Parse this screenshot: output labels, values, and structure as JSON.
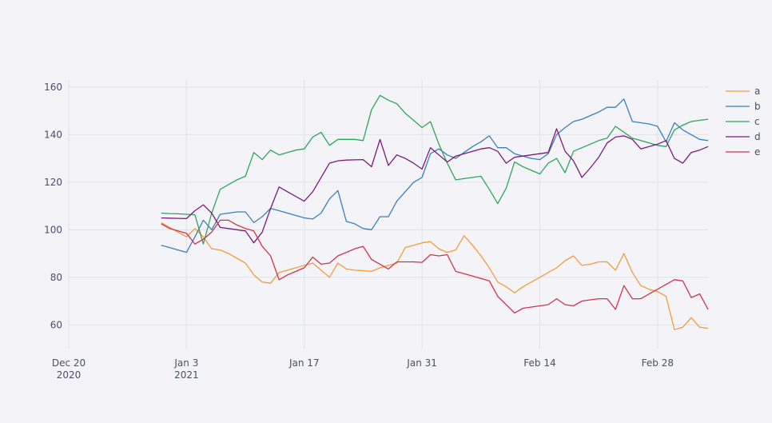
{
  "chart_data": {
    "type": "line",
    "title": "",
    "xlabel": "",
    "ylabel": "",
    "x_ticks": [
      {
        "date": "2020-12-20",
        "label": "Dec 20",
        "sublabel": "2020"
      },
      {
        "date": "2021-01-03",
        "label": "Jan 3",
        "sublabel": "2021"
      },
      {
        "date": "2021-01-17",
        "label": "Jan 17",
        "sublabel": ""
      },
      {
        "date": "2021-01-31",
        "label": "Jan 31",
        "sublabel": ""
      },
      {
        "date": "2021-02-14",
        "label": "Feb 14",
        "sublabel": ""
      },
      {
        "date": "2021-02-28",
        "label": "Feb 28",
        "sublabel": ""
      }
    ],
    "y_ticks": [
      60,
      80,
      100,
      120,
      140,
      160
    ],
    "xlim": [
      "2020-12-20",
      "2021-03-06"
    ],
    "ylim": [
      50,
      163
    ],
    "grid": true,
    "legend_position": "top-right",
    "x": [
      "2020-12-31",
      "2021-01-01",
      "2021-01-02",
      "2021-01-03",
      "2021-01-04",
      "2021-01-05",
      "2021-01-06",
      "2021-01-07",
      "2021-01-08",
      "2021-01-09",
      "2021-01-10",
      "2021-01-11",
      "2021-01-12",
      "2021-01-13",
      "2021-01-14",
      "2021-01-15",
      "2021-01-16",
      "2021-01-17",
      "2021-01-18",
      "2021-01-19",
      "2021-01-20",
      "2021-01-21",
      "2021-01-22",
      "2021-01-23",
      "2021-01-24",
      "2021-01-25",
      "2021-01-26",
      "2021-01-27",
      "2021-01-28",
      "2021-01-29",
      "2021-01-30",
      "2021-01-31",
      "2021-02-01",
      "2021-02-02",
      "2021-02-03",
      "2021-02-04",
      "2021-02-05",
      "2021-02-06",
      "2021-02-07",
      "2021-02-08",
      "2021-02-09",
      "2021-02-10",
      "2021-02-11",
      "2021-02-12",
      "2021-02-13",
      "2021-02-14",
      "2021-02-15",
      "2021-02-16",
      "2021-02-17",
      "2021-02-18",
      "2021-02-19",
      "2021-02-20",
      "2021-02-21",
      "2021-02-22",
      "2021-02-23",
      "2021-02-24",
      "2021-02-25",
      "2021-02-26",
      "2021-02-27",
      "2021-02-28",
      "2021-03-01",
      "2021-03-02",
      "2021-03-03",
      "2021-03-04",
      "2021-03-05",
      "2021-03-06"
    ],
    "series": [
      {
        "name": "a",
        "color": "#f39c3c",
        "values": [
          103,
          101,
          99,
          97,
          100.5,
          97,
          92,
          91.5,
          90,
          88,
          86,
          81,
          78,
          77.5,
          82,
          83,
          84,
          85,
          86,
          83,
          80,
          86,
          83.5,
          83,
          82.8,
          82.5,
          84,
          85,
          86,
          92.5,
          93.5,
          94.5,
          95,
          92,
          90.5,
          91.5,
          97.5,
          93.5,
          89,
          84,
          78,
          76,
          73.5,
          76,
          78,
          80,
          82,
          84,
          87,
          89,
          85,
          85.5,
          86.5,
          86.5,
          83,
          90,
          82,
          76.5,
          75,
          74,
          72,
          58,
          59,
          63,
          59,
          58.5
        ]
      },
      {
        "name": "b",
        "color": "#3b7fba",
        "values": [
          93.5,
          92.5,
          91.5,
          90.5,
          97,
          104,
          100,
          106.5,
          107,
          107.5,
          107.5,
          103,
          105.5,
          109,
          108,
          107,
          106,
          105,
          104.5,
          107,
          113,
          116.5,
          103.5,
          102.5,
          100.5,
          100,
          105.5,
          105.5,
          112,
          116,
          120,
          122,
          132,
          134,
          131.5,
          130,
          132.5,
          135,
          137,
          139.5,
          134.5,
          134.5,
          132,
          131,
          130,
          129.5,
          132,
          140,
          143,
          145.5,
          146.5,
          148,
          149.5,
          151.5,
          151.5,
          155,
          145.5,
          145,
          144.5,
          143.5,
          137,
          145,
          142,
          140,
          138,
          137.5
        ]
      },
      {
        "name": "c",
        "color": "#2ea65a",
        "values": [
          107,
          106.8,
          106.7,
          106.5,
          106.3,
          94,
          107,
          117,
          119,
          121,
          122.5,
          132.5,
          129.5,
          133.5,
          131.5,
          132.5,
          133.5,
          134,
          139,
          141,
          135.5,
          138,
          138,
          138,
          137.5,
          150.5,
          156.5,
          154.5,
          153,
          149,
          146,
          143,
          145.5,
          136,
          128,
          121,
          121.5,
          122,
          122.5,
          117,
          111,
          117.5,
          128.5,
          126.5,
          125,
          123.5,
          128,
          130,
          124,
          133,
          134.5,
          136,
          137.5,
          138.5,
          143.5,
          141,
          138.5,
          137.5,
          136.5,
          135.5,
          135,
          142,
          144,
          145.5,
          146,
          146.5
        ]
      },
      {
        "name": "d",
        "color": "#7b1a7d",
        "values": [
          105,
          104.9,
          104.8,
          104.7,
          108,
          110.5,
          107,
          101,
          100.5,
          100,
          99.5,
          94.5,
          99,
          109,
          118,
          116,
          114,
          112,
          116,
          122,
          128,
          129,
          129.3,
          129.4,
          129.5,
          126.5,
          138,
          127,
          131.5,
          130,
          128,
          125.5,
          134.5,
          131.5,
          128.5,
          131,
          132,
          133,
          134,
          134.5,
          133,
          128,
          130.5,
          131,
          131.5,
          132,
          132.5,
          142.5,
          133,
          129,
          122,
          126,
          130.5,
          136.5,
          139,
          139.5,
          138,
          134,
          135,
          136,
          137.5,
          130,
          128,
          132.5,
          133.5,
          135
        ]
      },
      {
        "name": "e",
        "color": "#d0354c",
        "values": [
          102.5,
          100.5,
          99.5,
          98.5,
          94,
          96,
          99,
          104,
          104,
          102,
          100.5,
          99.5,
          93,
          89,
          79,
          81,
          82.5,
          84,
          88.5,
          85.5,
          86,
          89,
          90.5,
          92,
          93,
          87.5,
          85.5,
          83.5,
          86.5,
          86.5,
          86.5,
          86.3,
          89.5,
          89,
          89.5,
          82.5,
          81.5,
          80.5,
          79.5,
          78.5,
          72,
          68.5,
          65,
          67,
          67.5,
          68,
          68.5,
          71,
          68.5,
          68,
          70,
          70.5,
          71,
          71,
          66.5,
          76.5,
          71,
          71,
          73,
          75,
          77,
          79,
          78.5,
          71.5,
          73,
          66.5
        ]
      }
    ]
  }
}
